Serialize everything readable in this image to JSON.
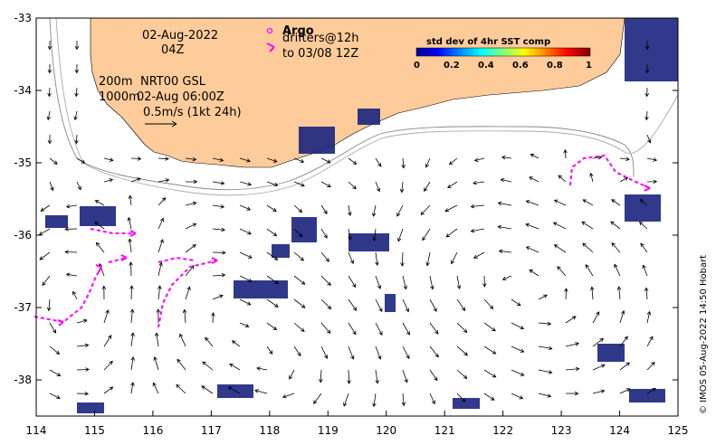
{
  "map": {
    "date_line": "02-Aug-2022",
    "time_line": "04Z",
    "depth_200": "200m",
    "depth_1000": "1000m",
    "product": "NRT00 GSL",
    "product_time": "02-Aug 06:00Z",
    "scale_label": "0.5m/s (1kt 24h)",
    "argo_label": "Argo",
    "drifters_label": "drifters@12h",
    "drifters_until": "to 03/08 12Z",
    "colorbar_title": "std dev of 4hr SST comp",
    "colorbar_ticks": [
      "0",
      "0.2",
      "0.4",
      "0.6",
      "0.8",
      "1"
    ],
    "credit": "© IMOS 05-Aug-2022 14:50 Hobart",
    "lon_ticks": [
      "114",
      "115",
      "116",
      "117",
      "118",
      "119",
      "120",
      "121",
      "122",
      "123",
      "124",
      "125"
    ],
    "lat_ticks": [
      "-33",
      "-34",
      "-35",
      "-36",
      "-37",
      "-38"
    ],
    "lon_range": [
      114,
      125
    ],
    "lat_range": [
      -38.5,
      -33
    ],
    "colors": {
      "land": "#fdcc9a",
      "drifter": "#ff00ff",
      "sst_patch": "#1a237e",
      "isobath": "#888888",
      "arrow": "#000000"
    }
  }
}
